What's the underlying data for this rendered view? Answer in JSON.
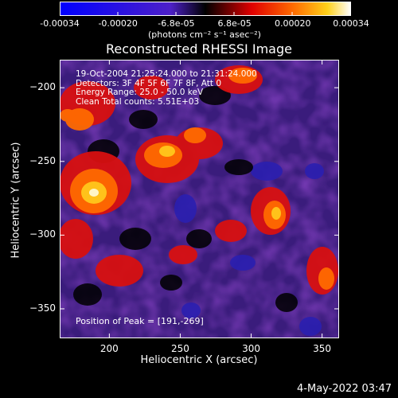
{
  "colorbar": {
    "ticks": [
      "-0.00034",
      "-0.00020",
      "-6.8e-05",
      "6.8e-05",
      "0.00020",
      "0.00034"
    ],
    "unit_label": "(photons cm⁻² s⁻¹ asec⁻²)",
    "range": [
      -0.00034,
      0.00034
    ]
  },
  "chart_data": {
    "type": "heatmap",
    "title": "Reconstructed RHESSI Image",
    "xlabel": "Heliocentric X (arcsec)",
    "ylabel": "Heliocentric Y (arcsec)",
    "xlim": [
      165,
      362
    ],
    "ylim": [
      -370,
      -181
    ],
    "x_ticks": [
      200,
      250,
      300,
      350
    ],
    "y_ticks": [
      -200,
      -250,
      -300,
      -350
    ],
    "peak": [
      191,
      -269
    ],
    "info_lines": [
      "19-Oct-2004 21:25:24.000 to 21:31:24.000",
      "Detectors: 3F 4F 5F 6F 7F 8F, Att 0",
      "Energy Range: 25.0 - 50.0 keV",
      "Clean     Total counts: 5.51E+03"
    ],
    "peak_label": "Position of Peak = [191,-269]"
  },
  "footer": {
    "date": "4-May-2022 03:47"
  }
}
